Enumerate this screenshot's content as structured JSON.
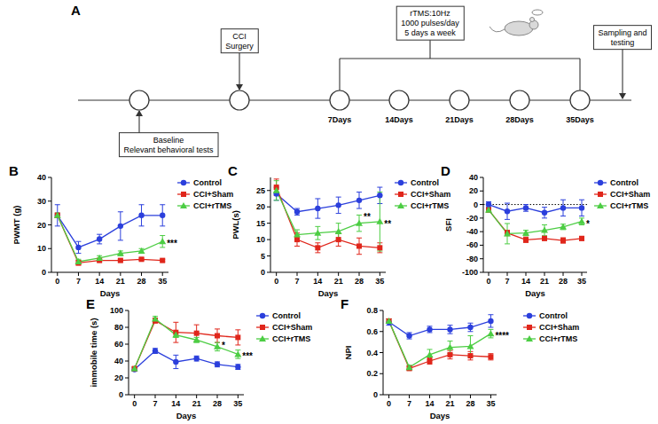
{
  "diagram": {
    "panel": "A",
    "timepoint_labels": [
      "7Days",
      "14Days",
      "21Days",
      "28Days",
      "35Days"
    ],
    "baseline_box": [
      "Baseline",
      "Relevant behavioral tests"
    ],
    "surgery_box": [
      "CCI",
      "Surgery"
    ],
    "rtms_box": [
      "rTMS:10Hz",
      "1000 pulses/day",
      "5 days a week"
    ],
    "sampling_box": [
      "Sampling and",
      "testing"
    ]
  },
  "chart_data": [
    {
      "type": "line",
      "panel": "B",
      "x": [
        0,
        7,
        14,
        21,
        28,
        35
      ],
      "xlim": [
        -2,
        37
      ],
      "xticks": [
        0,
        7,
        14,
        21,
        28,
        35
      ],
      "ylim": [
        0,
        40
      ],
      "yticks": [
        0,
        10,
        20,
        30,
        40
      ],
      "x_label": "Days",
      "y_label": "PWMT (g)",
      "legend": "right",
      "series": [
        {
          "name": "Control",
          "color": "#2b3fdc",
          "marker": "circle",
          "line_style": "solid",
          "values": [
            24,
            10.5,
            14,
            19.5,
            24,
            24
          ],
          "errors": [
            4.5,
            2.5,
            2,
            6,
            4.5,
            4.5
          ]
        },
        {
          "name": "CCI+Sham",
          "color": "#e0261b",
          "marker": "square",
          "line_style": "solid",
          "values": [
            24,
            4,
            5,
            5,
            5.5,
            5
          ],
          "errors": [
            1,
            1,
            0.5,
            0.5,
            0.5,
            0.5
          ]
        },
        {
          "name": "CCI+rTMS",
          "color": "#4ccd43",
          "marker": "triangle",
          "line_style": "solid",
          "values": [
            24,
            4.5,
            6,
            8,
            9,
            13
          ],
          "errors": [
            1,
            1,
            1,
            1,
            1,
            2.5
          ]
        }
      ],
      "annotations": [
        {
          "x": 35,
          "y": 13,
          "text": "***"
        }
      ]
    },
    {
      "type": "line",
      "panel": "C",
      "x": [
        0,
        7,
        14,
        21,
        28,
        35
      ],
      "xlim": [
        -2,
        37
      ],
      "xticks": [
        0,
        7,
        14,
        21,
        28,
        35
      ],
      "ylim": [
        0,
        29
      ],
      "yticks": [
        0,
        5,
        10,
        15,
        20,
        25
      ],
      "x_label": "Days",
      "y_label": "PWL(s)",
      "legend": "right",
      "series": [
        {
          "name": "Control",
          "color": "#2b3fdc",
          "marker": "circle",
          "line_style": "solid",
          "values": [
            24,
            18.5,
            19.5,
            20.5,
            22,
            23.5
          ],
          "errors": [
            2,
            1,
            3,
            2.5,
            2.5,
            2.5
          ]
        },
        {
          "name": "CCI+Sham",
          "color": "#e0261b",
          "marker": "square",
          "line_style": "solid",
          "values": [
            26,
            10,
            7.5,
            10,
            8,
            7.5
          ],
          "errors": [
            2.5,
            2,
            1.5,
            2,
            2.5,
            1.5
          ]
        },
        {
          "name": "CCI+rTMS",
          "color": "#4ccd43",
          "marker": "triangle",
          "line_style": "solid",
          "values": [
            25,
            11.5,
            12,
            12.5,
            15,
            15.5
          ],
          "errors": [
            3,
            1.5,
            2,
            2.5,
            2.5,
            9
          ]
        }
      ],
      "annotations": [
        {
          "x": 28,
          "y": 17.5,
          "text": "**"
        },
        {
          "x": 35,
          "y": 15.5,
          "text": "**"
        }
      ]
    },
    {
      "type": "line",
      "panel": "D",
      "x": [
        0,
        7,
        14,
        21,
        28,
        35
      ],
      "xlim": [
        -2,
        37
      ],
      "xticks": [
        0,
        7,
        14,
        21,
        28,
        35
      ],
      "ylim": [
        -100,
        40
      ],
      "yticks": [
        -100,
        -80,
        -60,
        -40,
        -20,
        0,
        20,
        40
      ],
      "x_label": "Days",
      "y_label": "SFI",
      "legend": "right",
      "reference_lines": [
        0
      ],
      "series": [
        {
          "name": "Control",
          "color": "#2b3fdc",
          "marker": "circle",
          "line_style": "solid",
          "values": [
            0,
            -10,
            -5,
            -12,
            -5,
            -5
          ],
          "errors": [
            4,
            12,
            5,
            8,
            12,
            12
          ]
        },
        {
          "name": "CCI+Sham",
          "color": "#e0261b",
          "marker": "square",
          "line_style": "solid",
          "values": [
            -8,
            -42,
            -52,
            -50,
            -53,
            -50
          ],
          "errors": [
            3,
            4,
            4,
            3,
            4,
            3
          ]
        },
        {
          "name": "CCI+rTMS",
          "color": "#4ccd43",
          "marker": "triangle",
          "line_style": "solid",
          "values": [
            -8,
            -43,
            -42,
            -38,
            -33,
            -25
          ],
          "errors": [
            3,
            15,
            4,
            8,
            4,
            5
          ]
        }
      ],
      "annotations": [
        {
          "x": 35,
          "y": -25,
          "text": "*"
        }
      ]
    },
    {
      "type": "line",
      "panel": "E",
      "x": [
        0,
        7,
        14,
        21,
        28,
        35
      ],
      "xlim": [
        -2,
        37
      ],
      "xticks": [
        0,
        7,
        14,
        21,
        28,
        35
      ],
      "ylim": [
        0,
        100
      ],
      "yticks": [
        0,
        20,
        40,
        60,
        80,
        100
      ],
      "x_label": "Days",
      "y_label": "immobile time (s)",
      "legend": "right",
      "series": [
        {
          "name": "Control",
          "color": "#2b3fdc",
          "marker": "circle",
          "line_style": "solid",
          "values": [
            30,
            52,
            39,
            43,
            36,
            33
          ],
          "errors": [
            2,
            3,
            8,
            3,
            3,
            3
          ]
        },
        {
          "name": "CCI+Sham",
          "color": "#e0261b",
          "marker": "square",
          "line_style": "solid",
          "values": [
            31,
            88,
            74,
            73,
            70,
            68
          ],
          "errors": [
            2,
            3,
            12,
            10,
            8,
            9
          ]
        },
        {
          "name": "CCI+rTMS",
          "color": "#4ccd43",
          "marker": "triangle",
          "line_style": "solid",
          "values": [
            31,
            90,
            71,
            65,
            57,
            48
          ],
          "errors": [
            2,
            3,
            3,
            3,
            5,
            5
          ]
        }
      ],
      "annotations": [
        {
          "x": 28,
          "y": 61,
          "text": "*"
        },
        {
          "x": 35,
          "y": 48,
          "text": "***"
        }
      ]
    },
    {
      "type": "line",
      "panel": "F",
      "x": [
        0,
        7,
        14,
        21,
        28,
        35
      ],
      "xlim": [
        -2,
        37
      ],
      "xticks": [
        0,
        7,
        14,
        21,
        28,
        35
      ],
      "ylim": [
        0,
        0.8
      ],
      "yticks": [
        0,
        0.2,
        0.4,
        0.6,
        0.8
      ],
      "x_label": "Days",
      "y_label": "NPI",
      "legend": "right",
      "series": [
        {
          "name": "Control",
          "color": "#2b3fdc",
          "marker": "circle",
          "line_style": "solid",
          "values": [
            0.69,
            0.56,
            0.62,
            0.62,
            0.64,
            0.7
          ],
          "errors": [
            0.03,
            0.03,
            0.03,
            0.04,
            0.04,
            0.06
          ]
        },
        {
          "name": "CCI+Sham",
          "color": "#e0261b",
          "marker": "square",
          "line_style": "solid",
          "values": [
            0.7,
            0.25,
            0.32,
            0.38,
            0.37,
            0.36
          ],
          "errors": [
            0.02,
            0.02,
            0.03,
            0.04,
            0.04,
            0.03
          ]
        },
        {
          "name": "CCI+rTMS",
          "color": "#4ccd43",
          "marker": "triangle",
          "line_style": "solid",
          "values": [
            0.7,
            0.26,
            0.38,
            0.45,
            0.46,
            0.58
          ],
          "errors": [
            0.02,
            0.02,
            0.05,
            0.06,
            0.1,
            0.04
          ]
        }
      ],
      "annotations": [
        {
          "x": 35,
          "y": 0.58,
          "text": "****"
        }
      ]
    }
  ]
}
